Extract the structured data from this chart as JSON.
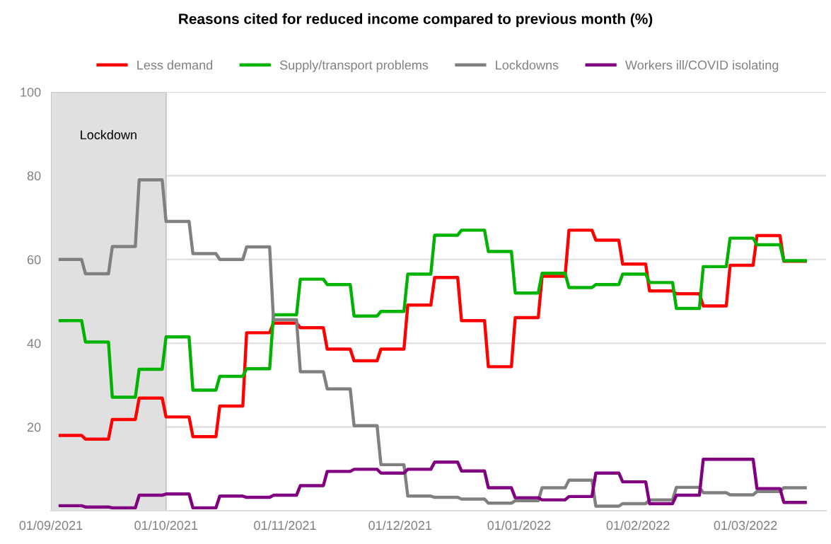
{
  "chart_data": {
    "type": "line",
    "title": "Reasons cited for reduced income compared to previous month (%)",
    "x": [
      "2021-09-03",
      "2021-09-09",
      "2021-09-10",
      "2021-09-16",
      "2021-09-17",
      "2021-09-23",
      "2021-09-24",
      "2021-09-30",
      "2021-10-01",
      "2021-10-07",
      "2021-10-08",
      "2021-10-14",
      "2021-10-15",
      "2021-10-21",
      "2021-10-22",
      "2021-10-28",
      "2021-10-29",
      "2021-11-04",
      "2021-11-05",
      "2021-11-11",
      "2021-11-12",
      "2021-11-18",
      "2021-11-19",
      "2021-11-25",
      "2021-11-26",
      "2021-12-02",
      "2021-12-03",
      "2021-12-09",
      "2021-12-10",
      "2021-12-16",
      "2021-12-17",
      "2021-12-23",
      "2021-12-24",
      "2021-12-30",
      "2021-12-31",
      "2022-01-06",
      "2022-01-07",
      "2022-01-13",
      "2022-01-14",
      "2022-01-20",
      "2022-01-21",
      "2022-01-27",
      "2022-01-28",
      "2022-02-03",
      "2022-02-04",
      "2022-02-10",
      "2022-02-11",
      "2022-02-17",
      "2022-02-18",
      "2022-02-24",
      "2022-02-25",
      "2022-03-03",
      "2022-03-04",
      "2022-03-10",
      "2022-03-11",
      "2022-03-17"
    ],
    "series": [
      {
        "name": "Less demand",
        "color": "#ff0000",
        "values": [
          18.0,
          18.0,
          17.1,
          17.1,
          21.8,
          21.8,
          26.9,
          26.9,
          22.4,
          22.4,
          17.7,
          17.7,
          25.0,
          25.0,
          42.5,
          42.5,
          44.8,
          44.8,
          43.7,
          43.7,
          38.6,
          38.6,
          35.8,
          35.8,
          38.6,
          38.6,
          49.1,
          49.1,
          55.7,
          55.7,
          45.4,
          45.4,
          34.4,
          34.4,
          46.1,
          46.1,
          56.0,
          56.0,
          67.0,
          67.0,
          64.6,
          64.6,
          58.9,
          58.9,
          52.5,
          52.5,
          51.8,
          51.8,
          48.9,
          48.9,
          58.6,
          58.6,
          65.7,
          65.7,
          59.6,
          59.6
        ]
      },
      {
        "name": "Supply/transport problems",
        "color": "#00b300",
        "values": [
          45.4,
          45.4,
          40.3,
          40.3,
          27.1,
          27.1,
          33.8,
          33.8,
          41.5,
          41.5,
          28.8,
          28.8,
          32.1,
          32.1,
          33.9,
          33.9,
          46.8,
          46.8,
          55.3,
          55.3,
          54.0,
          54.0,
          46.5,
          46.5,
          47.6,
          47.6,
          56.5,
          56.5,
          65.8,
          65.8,
          67.0,
          67.0,
          61.9,
          61.9,
          52.0,
          52.0,
          56.7,
          56.7,
          53.3,
          53.3,
          54.0,
          54.0,
          56.5,
          56.5,
          54.5,
          54.5,
          48.3,
          48.3,
          58.3,
          58.3,
          65.1,
          65.1,
          63.5,
          63.5,
          59.7,
          59.7
        ]
      },
      {
        "name": "Lockdowns",
        "color": "#808080",
        "values": [
          60.0,
          60.0,
          56.6,
          56.6,
          63.1,
          63.1,
          79.0,
          79.0,
          69.1,
          69.1,
          61.4,
          61.4,
          60.0,
          60.0,
          63.0,
          63.0,
          45.6,
          45.6,
          33.2,
          33.2,
          29.1,
          29.1,
          20.3,
          20.3,
          11.0,
          11.0,
          3.5,
          3.5,
          3.2,
          3.2,
          2.8,
          2.8,
          1.8,
          1.8,
          2.4,
          2.4,
          5.5,
          5.5,
          7.3,
          7.3,
          1.1,
          1.1,
          1.7,
          1.7,
          2.6,
          2.6,
          5.6,
          5.6,
          4.3,
          4.3,
          3.8,
          3.8,
          4.6,
          4.6,
          5.5,
          5.5
        ]
      },
      {
        "name": "Workers ill/COVID isolating",
        "color": "#800080",
        "values": [
          1.2,
          1.2,
          0.9,
          0.9,
          0.7,
          0.7,
          3.7,
          3.7,
          4.0,
          4.0,
          0.7,
          0.7,
          3.5,
          3.5,
          3.2,
          3.2,
          3.7,
          3.7,
          6.0,
          6.0,
          9.4,
          9.4,
          9.9,
          9.9,
          9.0,
          9.0,
          9.9,
          9.9,
          11.6,
          11.6,
          9.5,
          9.5,
          5.5,
          5.5,
          3.1,
          3.1,
          2.6,
          2.6,
          3.4,
          3.4,
          9.0,
          9.0,
          6.9,
          6.9,
          1.7,
          1.7,
          3.7,
          3.7,
          12.3,
          12.3,
          12.3,
          12.3,
          5.3,
          5.3,
          2.0,
          2.0
        ]
      }
    ],
    "xlim": [
      "2021-09-01",
      "2022-03-22"
    ],
    "xticks": [
      {
        "value": "2021-09-01",
        "label": "01/09/2021"
      },
      {
        "value": "2021-10-01",
        "label": "01/10/2021"
      },
      {
        "value": "2021-11-01",
        "label": "01/11/2021"
      },
      {
        "value": "2021-12-01",
        "label": "01/12/2021"
      },
      {
        "value": "2022-01-01",
        "label": "01/01/2022"
      },
      {
        "value": "2022-02-01",
        "label": "01/02/2022"
      },
      {
        "value": "2022-03-01",
        "label": "01/03/2022"
      }
    ],
    "ylim": [
      0,
      100
    ],
    "yticks": [
      20,
      40,
      60,
      80,
      100
    ],
    "bands": [
      {
        "axis": "x",
        "from": "2021-09-01",
        "to": "2021-10-01",
        "label": "Lockdown",
        "color": "#e0e0e0"
      }
    ],
    "grid": "y",
    "legend": "top",
    "line_style": "solid",
    "marker": "none"
  }
}
